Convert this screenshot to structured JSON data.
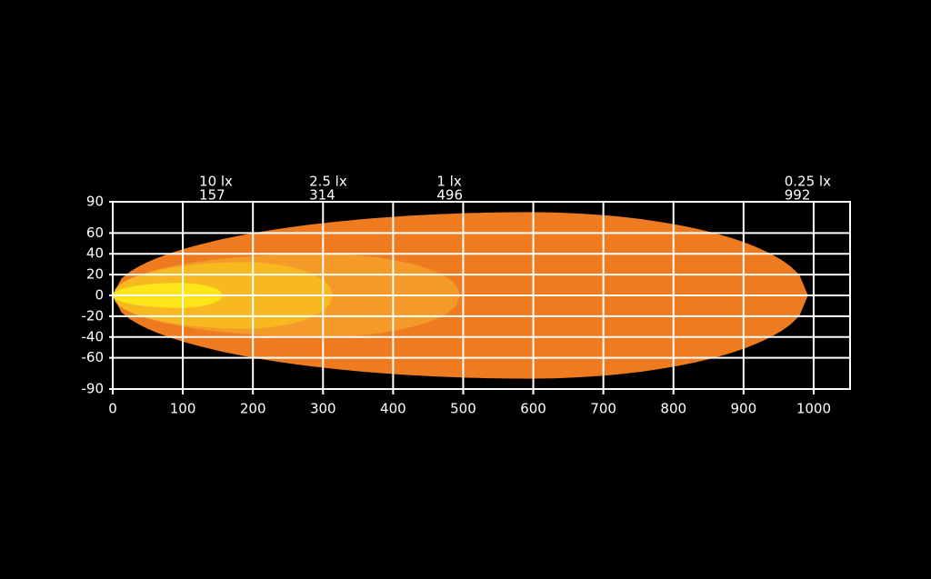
{
  "chart_data": {
    "type": "beam",
    "series": [
      {
        "name": "0.25 lx",
        "reach": 992,
        "half_width": 80,
        "color": "#ef7b21"
      },
      {
        "name": "1 lx",
        "reach": 496,
        "half_width": 40,
        "color": "#f39a28"
      },
      {
        "name": "2.5 lx",
        "reach": 314,
        "half_width": 32,
        "color": "#f8b820"
      },
      {
        "name": "10 lx",
        "reach": 157,
        "half_width": 12,
        "color": "#fde51a"
      }
    ],
    "xlim": [
      0,
      1052
    ],
    "ylim": [
      -90,
      90
    ],
    "xticks": [
      0,
      100,
      200,
      300,
      400,
      500,
      600,
      700,
      800,
      900,
      1000
    ],
    "yticks": [
      90,
      60,
      40,
      20,
      0,
      -20,
      -40,
      -60,
      -90
    ],
    "grid": true
  }
}
